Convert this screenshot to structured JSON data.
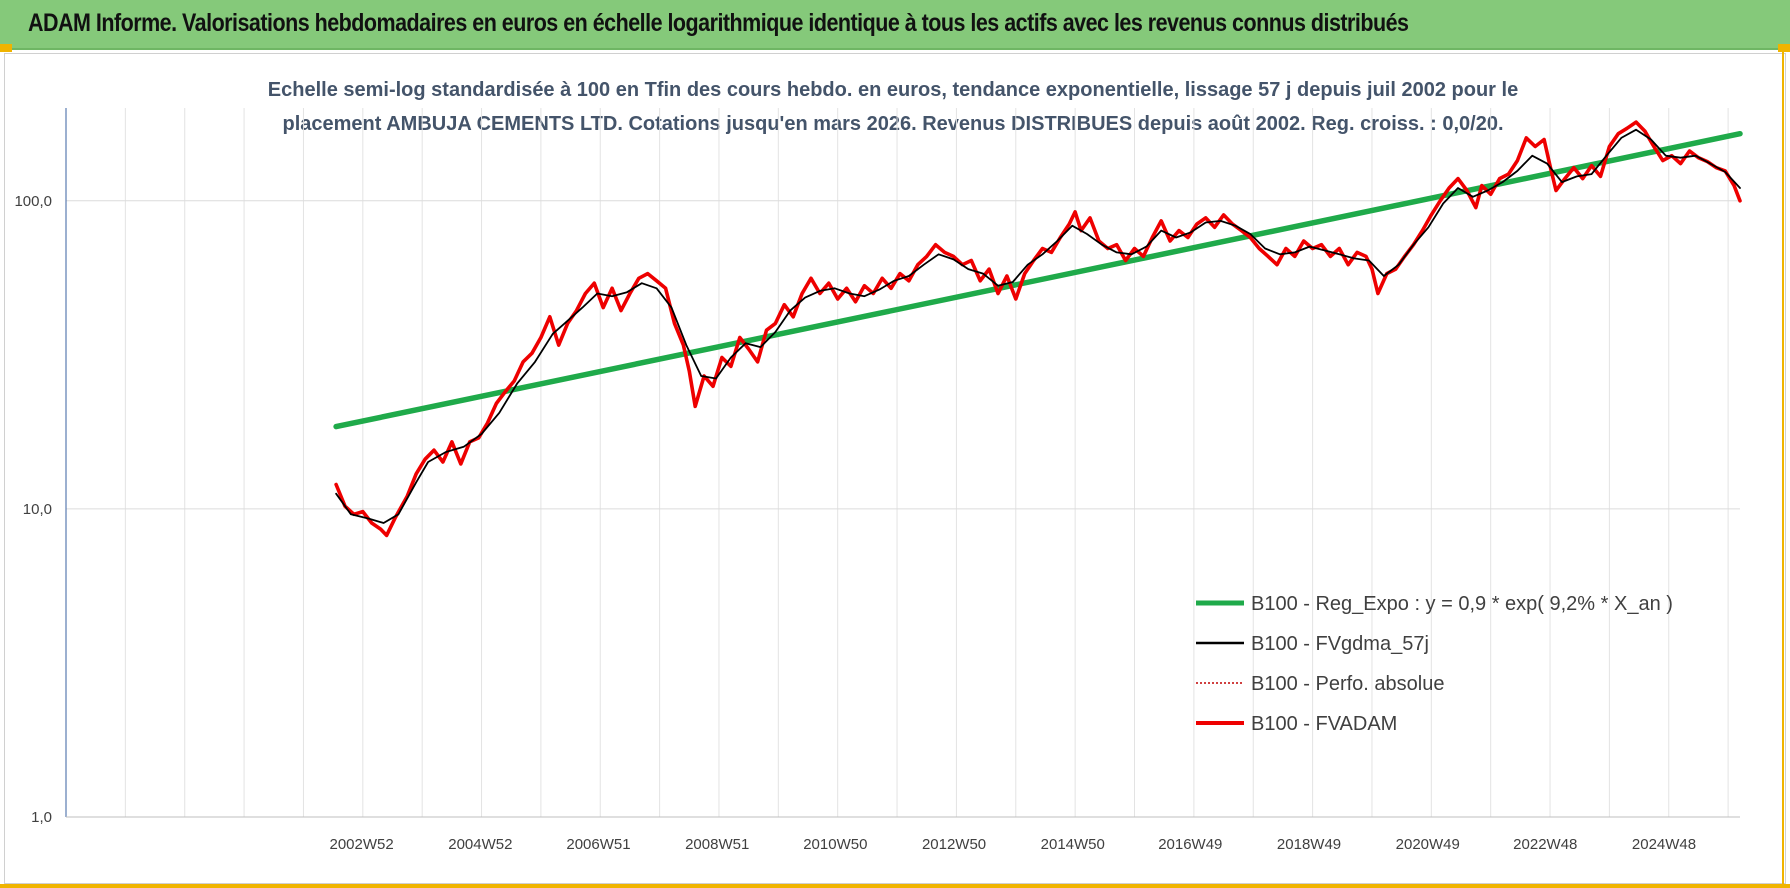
{
  "banner": {
    "title": "ADAM Informe. Valorisations hebdomadaires en euros en échelle logarithmique identique à tous les actifs avec les revenus connus distribués"
  },
  "chart_data": {
    "type": "line",
    "title_lines": [
      "Echelle semi-log standardisée à 100 en Tfin des cours hebdo. en euros, tendance exponentielle, lissage 57 j depuis juil 2002 pour le",
      "placement AMBUJA CEMENTS LTD. Cotations jusqu'en mars 2026. Revenus DISTRIBUES depuis août 2002. Reg. croiss. : 0,0/20."
    ],
    "xlabel": "",
    "ylabel": "",
    "y_scale": "log",
    "ylim": [
      1,
      200
    ],
    "xlim": [
      1998.0,
      2026.2
    ],
    "y_ticks": [
      {
        "value": 1,
        "label": "1,0"
      },
      {
        "value": 10,
        "label": "10,0"
      },
      {
        "value": 100,
        "label": "100,0"
      }
    ],
    "x_ticks": [
      {
        "value": 2002.98,
        "label": "2002W52"
      },
      {
        "value": 2004.98,
        "label": "2004W52"
      },
      {
        "value": 2006.97,
        "label": "2006W51"
      },
      {
        "value": 2008.97,
        "label": "2008W51"
      },
      {
        "value": 2010.96,
        "label": "2010W50"
      },
      {
        "value": 2012.96,
        "label": "2012W50"
      },
      {
        "value": 2014.96,
        "label": "2014W50"
      },
      {
        "value": 2016.94,
        "label": "2016W49"
      },
      {
        "value": 2018.94,
        "label": "2018W49"
      },
      {
        "value": 2020.94,
        "label": "2020W49"
      },
      {
        "value": 2022.92,
        "label": "2022W48"
      },
      {
        "value": 2024.92,
        "label": "2024W48"
      }
    ],
    "grid": true,
    "legend_position": "bottom-right",
    "series": [
      {
        "name": "B100 - Reg_Expo : y = 0,9 * exp( 9,2% *  X_an )",
        "color": "#1faa4a",
        "points": [
          [
            2002.55,
            18.5
          ],
          [
            2026.2,
            165
          ]
        ]
      },
      {
        "name": "B100 - FVgdma_57j",
        "color": "#000000",
        "points": [
          [
            2002.55,
            11.2
          ],
          [
            2002.8,
            9.6
          ],
          [
            2003.1,
            9.3
          ],
          [
            2003.35,
            9.0
          ],
          [
            2003.6,
            9.6
          ],
          [
            2003.9,
            12.2
          ],
          [
            2004.1,
            14.2
          ],
          [
            2004.4,
            15.3
          ],
          [
            2004.7,
            15.9
          ],
          [
            2005.0,
            17.5
          ],
          [
            2005.3,
            20.5
          ],
          [
            2005.6,
            25.5
          ],
          [
            2005.9,
            30.0
          ],
          [
            2006.2,
            37.0
          ],
          [
            2006.4,
            40.0
          ],
          [
            2006.7,
            45.0
          ],
          [
            2006.95,
            50.0
          ],
          [
            2007.2,
            49.0
          ],
          [
            2007.45,
            50.5
          ],
          [
            2007.7,
            54.0
          ],
          [
            2007.95,
            52.0
          ],
          [
            2008.2,
            45.0
          ],
          [
            2008.45,
            34.0
          ],
          [
            2008.7,
            27.0
          ],
          [
            2008.95,
            26.5
          ],
          [
            2009.2,
            31.0
          ],
          [
            2009.45,
            34.5
          ],
          [
            2009.7,
            33.5
          ],
          [
            2009.95,
            37.5
          ],
          [
            2010.2,
            44.0
          ],
          [
            2010.45,
            48.5
          ],
          [
            2010.7,
            51.0
          ],
          [
            2010.95,
            52.0
          ],
          [
            2011.2,
            50.0
          ],
          [
            2011.45,
            49.0
          ],
          [
            2011.7,
            51.5
          ],
          [
            2011.95,
            55.0
          ],
          [
            2012.2,
            57.0
          ],
          [
            2012.45,
            62.0
          ],
          [
            2012.7,
            67.0
          ],
          [
            2012.95,
            64.5
          ],
          [
            2013.2,
            60.0
          ],
          [
            2013.45,
            58.0
          ],
          [
            2013.7,
            53.0
          ],
          [
            2013.95,
            54.5
          ],
          [
            2014.2,
            62.0
          ],
          [
            2014.45,
            67.0
          ],
          [
            2014.7,
            74.0
          ],
          [
            2014.95,
            83.0
          ],
          [
            2015.2,
            78.0
          ],
          [
            2015.45,
            72.0
          ],
          [
            2015.7,
            68.0
          ],
          [
            2015.95,
            67.0
          ],
          [
            2016.2,
            71.0
          ],
          [
            2016.45,
            80.0
          ],
          [
            2016.7,
            76.0
          ],
          [
            2016.95,
            79.0
          ],
          [
            2017.2,
            85.0
          ],
          [
            2017.45,
            86.0
          ],
          [
            2017.7,
            83.0
          ],
          [
            2017.95,
            78.0
          ],
          [
            2018.2,
            70.0
          ],
          [
            2018.45,
            67.0
          ],
          [
            2018.7,
            68.0
          ],
          [
            2018.95,
            71.0
          ],
          [
            2019.2,
            69.0
          ],
          [
            2019.45,
            67.0
          ],
          [
            2019.7,
            65.0
          ],
          [
            2019.95,
            64.0
          ],
          [
            2020.2,
            57.0
          ],
          [
            2020.45,
            62.0
          ],
          [
            2020.7,
            72.0
          ],
          [
            2020.95,
            82.0
          ],
          [
            2021.2,
            98.0
          ],
          [
            2021.45,
            110.0
          ],
          [
            2021.7,
            103.0
          ],
          [
            2021.95,
            108.0
          ],
          [
            2022.2,
            115.0
          ],
          [
            2022.45,
            125.0
          ],
          [
            2022.7,
            140.0
          ],
          [
            2022.95,
            132.0
          ],
          [
            2023.2,
            115.0
          ],
          [
            2023.45,
            120.0
          ],
          [
            2023.7,
            122.0
          ],
          [
            2023.95,
            140.0
          ],
          [
            2024.2,
            160.0
          ],
          [
            2024.45,
            170.0
          ],
          [
            2024.7,
            158.0
          ],
          [
            2024.95,
            140.0
          ],
          [
            2025.2,
            138.0
          ],
          [
            2025.45,
            140.0
          ],
          [
            2025.7,
            132.0
          ],
          [
            2025.95,
            124.0
          ],
          [
            2026.2,
            110.0
          ]
        ]
      },
      {
        "name": "B100 - Perfo. absolue",
        "color": "#c00000",
        "points": []
      },
      {
        "name": "B100 - FVADAM",
        "color": "#ee0000",
        "points": [
          [
            2002.55,
            12.0
          ],
          [
            2002.7,
            10.2
          ],
          [
            2002.85,
            9.6
          ],
          [
            2003.0,
            9.8
          ],
          [
            2003.15,
            9.0
          ],
          [
            2003.3,
            8.6
          ],
          [
            2003.4,
            8.2
          ],
          [
            2003.55,
            9.4
          ],
          [
            2003.75,
            11.0
          ],
          [
            2003.9,
            13.0
          ],
          [
            2004.05,
            14.5
          ],
          [
            2004.2,
            15.5
          ],
          [
            2004.35,
            14.2
          ],
          [
            2004.5,
            16.5
          ],
          [
            2004.65,
            14.0
          ],
          [
            2004.8,
            16.5
          ],
          [
            2004.95,
            17.0
          ],
          [
            2005.1,
            19.0
          ],
          [
            2005.25,
            22.0
          ],
          [
            2005.4,
            24.0
          ],
          [
            2005.55,
            26.0
          ],
          [
            2005.7,
            30.0
          ],
          [
            2005.85,
            32.0
          ],
          [
            2006.0,
            36.0
          ],
          [
            2006.15,
            42.0
          ],
          [
            2006.3,
            34.0
          ],
          [
            2006.45,
            40.0
          ],
          [
            2006.6,
            44.0
          ],
          [
            2006.75,
            50.0
          ],
          [
            2006.9,
            54.0
          ],
          [
            2007.05,
            45.0
          ],
          [
            2007.2,
            52.0
          ],
          [
            2007.35,
            44.0
          ],
          [
            2007.5,
            50.0
          ],
          [
            2007.65,
            56.0
          ],
          [
            2007.8,
            58.0
          ],
          [
            2007.95,
            55.0
          ],
          [
            2008.1,
            52.0
          ],
          [
            2008.25,
            40.0
          ],
          [
            2008.4,
            34.0
          ],
          [
            2008.5,
            28.0
          ],
          [
            2008.6,
            21.5
          ],
          [
            2008.75,
            27.0
          ],
          [
            2008.9,
            25.0
          ],
          [
            2009.05,
            31.0
          ],
          [
            2009.2,
            29.0
          ],
          [
            2009.35,
            36.0
          ],
          [
            2009.5,
            33.0
          ],
          [
            2009.65,
            30.0
          ],
          [
            2009.8,
            38.0
          ],
          [
            2009.95,
            40.0
          ],
          [
            2010.1,
            46.0
          ],
          [
            2010.25,
            42.0
          ],
          [
            2010.4,
            50.0
          ],
          [
            2010.55,
            56.0
          ],
          [
            2010.7,
            50.0
          ],
          [
            2010.85,
            54.0
          ],
          [
            2011.0,
            48.0
          ],
          [
            2011.15,
            52.0
          ],
          [
            2011.3,
            47.0
          ],
          [
            2011.45,
            53.0
          ],
          [
            2011.6,
            50.0
          ],
          [
            2011.75,
            56.0
          ],
          [
            2011.9,
            52.0
          ],
          [
            2012.05,
            58.0
          ],
          [
            2012.2,
            55.0
          ],
          [
            2012.35,
            62.0
          ],
          [
            2012.5,
            66.0
          ],
          [
            2012.65,
            72.0
          ],
          [
            2012.8,
            68.0
          ],
          [
            2012.95,
            66.0
          ],
          [
            2013.1,
            62.0
          ],
          [
            2013.25,
            64.0
          ],
          [
            2013.4,
            55.0
          ],
          [
            2013.55,
            60.0
          ],
          [
            2013.7,
            50.0
          ],
          [
            2013.85,
            57.0
          ],
          [
            2014.0,
            48.0
          ],
          [
            2014.15,
            58.0
          ],
          [
            2014.3,
            64.0
          ],
          [
            2014.45,
            70.0
          ],
          [
            2014.6,
            68.0
          ],
          [
            2014.75,
            76.0
          ],
          [
            2014.9,
            84.0
          ],
          [
            2015.0,
            92.0
          ],
          [
            2015.1,
            80.0
          ],
          [
            2015.25,
            88.0
          ],
          [
            2015.4,
            74.0
          ],
          [
            2015.55,
            70.0
          ],
          [
            2015.7,
            72.0
          ],
          [
            2015.85,
            64.0
          ],
          [
            2016.0,
            70.0
          ],
          [
            2016.15,
            66.0
          ],
          [
            2016.3,
            76.0
          ],
          [
            2016.45,
            86.0
          ],
          [
            2016.6,
            74.0
          ],
          [
            2016.75,
            80.0
          ],
          [
            2016.9,
            76.0
          ],
          [
            2017.05,
            84.0
          ],
          [
            2017.2,
            88.0
          ],
          [
            2017.35,
            82.0
          ],
          [
            2017.5,
            90.0
          ],
          [
            2017.65,
            84.0
          ],
          [
            2017.8,
            80.0
          ],
          [
            2017.95,
            76.0
          ],
          [
            2018.1,
            70.0
          ],
          [
            2018.25,
            66.0
          ],
          [
            2018.4,
            62.0
          ],
          [
            2018.55,
            70.0
          ],
          [
            2018.7,
            66.0
          ],
          [
            2018.85,
            74.0
          ],
          [
            2019.0,
            70.0
          ],
          [
            2019.15,
            72.0
          ],
          [
            2019.3,
            66.0
          ],
          [
            2019.45,
            70.0
          ],
          [
            2019.6,
            62.0
          ],
          [
            2019.75,
            68.0
          ],
          [
            2019.9,
            66.0
          ],
          [
            2020.0,
            60.0
          ],
          [
            2020.1,
            50.0
          ],
          [
            2020.25,
            58.0
          ],
          [
            2020.4,
            60.0
          ],
          [
            2020.55,
            66.0
          ],
          [
            2020.7,
            72.0
          ],
          [
            2020.85,
            80.0
          ],
          [
            2021.0,
            90.0
          ],
          [
            2021.15,
            100.0
          ],
          [
            2021.3,
            110.0
          ],
          [
            2021.45,
            118.0
          ],
          [
            2021.6,
            108.0
          ],
          [
            2021.75,
            95.0
          ],
          [
            2021.85,
            112.0
          ],
          [
            2022.0,
            105.0
          ],
          [
            2022.15,
            118.0
          ],
          [
            2022.3,
            122.0
          ],
          [
            2022.45,
            135.0
          ],
          [
            2022.6,
            160.0
          ],
          [
            2022.75,
            150.0
          ],
          [
            2022.9,
            158.0
          ],
          [
            2023.0,
            130.0
          ],
          [
            2023.1,
            108.0
          ],
          [
            2023.25,
            118.0
          ],
          [
            2023.4,
            128.0
          ],
          [
            2023.55,
            118.0
          ],
          [
            2023.7,
            130.0
          ],
          [
            2023.85,
            120.0
          ],
          [
            2024.0,
            150.0
          ],
          [
            2024.15,
            165.0
          ],
          [
            2024.3,
            172.0
          ],
          [
            2024.45,
            180.0
          ],
          [
            2024.6,
            168.0
          ],
          [
            2024.75,
            150.0
          ],
          [
            2024.9,
            135.0
          ],
          [
            2025.05,
            140.0
          ],
          [
            2025.2,
            132.0
          ],
          [
            2025.35,
            145.0
          ],
          [
            2025.5,
            138.0
          ],
          [
            2025.65,
            134.0
          ],
          [
            2025.8,
            128.0
          ],
          [
            2025.95,
            125.0
          ],
          [
            2026.1,
            112.0
          ],
          [
            2026.2,
            100.0
          ]
        ]
      }
    ]
  }
}
